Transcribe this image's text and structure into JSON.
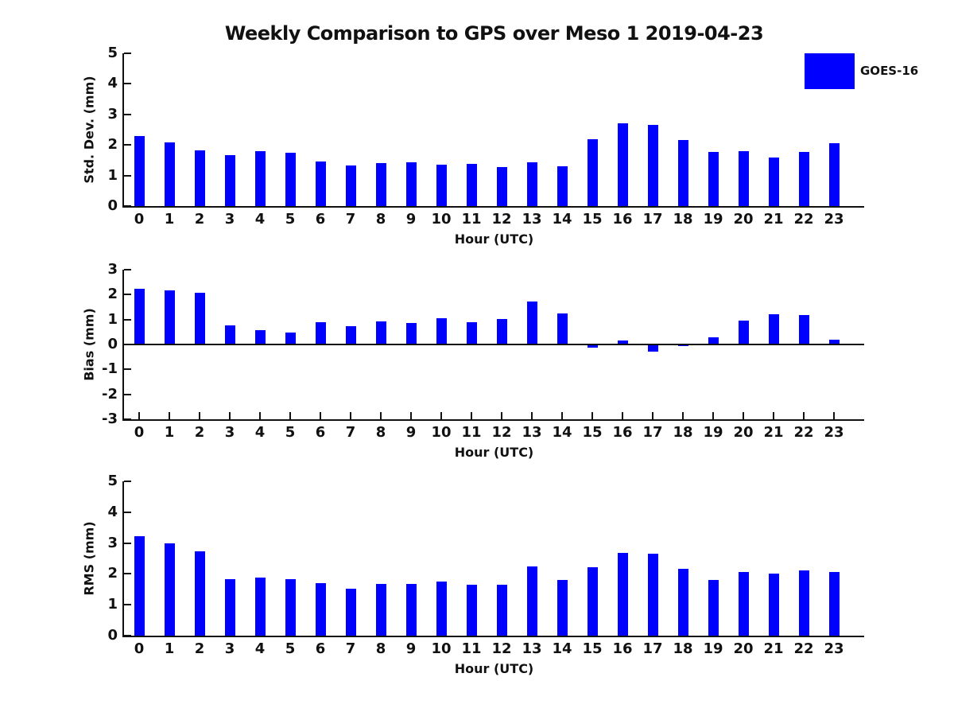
{
  "title": "Weekly Comparison to GPS over Meso 1 2019-04-23",
  "legend": {
    "label": "GOES-16",
    "color": "#0000FF"
  },
  "bar_color": "#0000FF",
  "axis_color": "#111111",
  "chart_data": [
    {
      "type": "bar",
      "series_name": "GOES-16",
      "ylabel": "Std. Dev. (mm)",
      "xlabel": "Hour (UTC)",
      "ylim": [
        0,
        5
      ],
      "yticks": [
        0,
        1,
        2,
        3,
        4,
        5
      ],
      "categories": [
        0,
        1,
        2,
        3,
        4,
        5,
        6,
        7,
        8,
        9,
        10,
        11,
        12,
        13,
        14,
        15,
        16,
        17,
        18,
        19,
        20,
        21,
        22,
        23
      ],
      "values": [
        2.3,
        2.09,
        1.82,
        1.67,
        1.79,
        1.74,
        1.47,
        1.33,
        1.41,
        1.43,
        1.35,
        1.38,
        1.28,
        1.44,
        1.31,
        2.2,
        2.71,
        2.66,
        2.16,
        1.77,
        1.8,
        1.59,
        1.78,
        2.06
      ],
      "grid": false,
      "legend_position": "upper right"
    },
    {
      "type": "bar",
      "series_name": "GOES-16",
      "ylabel": "Bias (mm)",
      "xlabel": "Hour (UTC)",
      "ylim": [
        -3,
        3
      ],
      "yticks": [
        -3,
        -2,
        -1,
        0,
        1,
        2,
        3
      ],
      "categories": [
        0,
        1,
        2,
        3,
        4,
        5,
        6,
        7,
        8,
        9,
        10,
        11,
        12,
        13,
        14,
        15,
        16,
        17,
        18,
        19,
        20,
        21,
        22,
        23
      ],
      "values": [
        2.25,
        2.16,
        2.06,
        0.76,
        0.57,
        0.49,
        0.88,
        0.72,
        0.91,
        0.86,
        1.06,
        0.88,
        1.03,
        1.72,
        1.25,
        -0.13,
        0.15,
        -0.3,
        -0.07,
        0.3,
        0.97,
        1.21,
        1.19,
        0.2
      ],
      "grid": false
    },
    {
      "type": "bar",
      "series_name": "GOES-16",
      "ylabel": "RMS (mm)",
      "xlabel": "Hour (UTC)",
      "ylim": [
        0,
        5
      ],
      "yticks": [
        0,
        1,
        2,
        3,
        4,
        5
      ],
      "categories": [
        0,
        1,
        2,
        3,
        4,
        5,
        6,
        7,
        8,
        9,
        10,
        11,
        12,
        13,
        14,
        15,
        16,
        17,
        18,
        19,
        20,
        21,
        22,
        23
      ],
      "values": [
        3.22,
        3.0,
        2.74,
        1.83,
        1.87,
        1.83,
        1.71,
        1.51,
        1.68,
        1.68,
        1.74,
        1.64,
        1.64,
        2.24,
        1.81,
        2.21,
        2.69,
        2.66,
        2.16,
        1.81,
        2.05,
        2.02,
        2.12,
        2.07
      ],
      "grid": false
    }
  ]
}
